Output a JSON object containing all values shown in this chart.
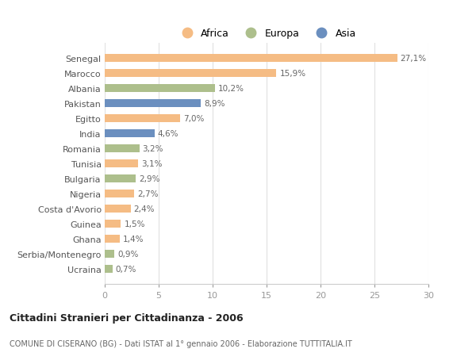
{
  "categories": [
    "Senegal",
    "Marocco",
    "Albania",
    "Pakistan",
    "Egitto",
    "India",
    "Romania",
    "Tunisia",
    "Bulgaria",
    "Nigeria",
    "Costa d'Avorio",
    "Guinea",
    "Ghana",
    "Serbia/Montenegro",
    "Ucraina"
  ],
  "values": [
    27.1,
    15.9,
    10.2,
    8.9,
    7.0,
    4.6,
    3.2,
    3.1,
    2.9,
    2.7,
    2.4,
    1.5,
    1.4,
    0.9,
    0.7
  ],
  "labels": [
    "27,1%",
    "15,9%",
    "10,2%",
    "8,9%",
    "7,0%",
    "4,6%",
    "3,2%",
    "3,1%",
    "2,9%",
    "2,7%",
    "2,4%",
    "1,5%",
    "1,4%",
    "0,9%",
    "0,7%"
  ],
  "continent": [
    "Africa",
    "Africa",
    "Europa",
    "Asia",
    "Africa",
    "Asia",
    "Europa",
    "Africa",
    "Europa",
    "Africa",
    "Africa",
    "Africa",
    "Africa",
    "Europa",
    "Europa"
  ],
  "colors": {
    "Africa": "#F5BC84",
    "Europa": "#ADBF8C",
    "Asia": "#6B8FBF"
  },
  "legend_labels": [
    "Africa",
    "Europa",
    "Asia"
  ],
  "legend_colors": [
    "#F5BC84",
    "#ADBF8C",
    "#6B8FBF"
  ],
  "title1": "Cittadini Stranieri per Cittadinanza - 2006",
  "title2": "COMUNE DI CISERANO (BG) - Dati ISTAT al 1° gennaio 2006 - Elaborazione TUTTITALIA.IT",
  "xlim": [
    0,
    30
  ],
  "xticks": [
    0,
    5,
    10,
    15,
    20,
    25,
    30
  ],
  "background_color": "#ffffff",
  "plot_bg_color": "#ffffff",
  "grid_color": "#e0e0e0"
}
